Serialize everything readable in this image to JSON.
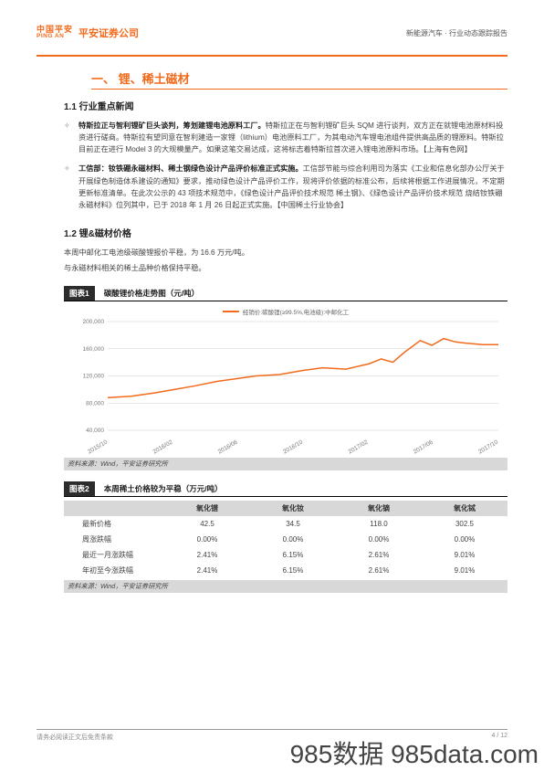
{
  "header": {
    "logo_cn": "中国平安",
    "logo_en": "PING AN",
    "logo_right": "平安证券公司",
    "right_text": "新能源汽车 · 行业动态跟踪报告"
  },
  "section1": {
    "title": "一、 锂、稀土磁材",
    "sub1": "1.1 行业重点新闻",
    "bullets": [
      {
        "lead": "特斯拉正与智利锂矿巨头谈判，筹划建锂电池原料工厂。",
        "body": "特斯拉正在与智利锂矿巨头 SQM 进行谈判，双方正在就锂电池原材料投资进行磋商。特斯拉有望同意在智利建造一家锂（lithium）电池原料工厂，为其电动汽车锂电池组件提供高品质的锂原料。特斯拉目前正在进行 Model 3 的大规模量产。如果这笔交易达成，这将标志着特斯拉首次进入锂电池原料市场。【上海有色网】"
      },
      {
        "lead": "工信部：钕铁硼永磁材料、稀土钢绿色设计产品评价标准正式实施。",
        "body": "工信部节能与综合利用司为落实《工业和信息化部办公厅关于开展绿色制造体系建设的通知》要求，推动绿色设计产品评价工作，现将评价依据的标准公布，后续将根据工作进展情况，不定期更新标准清单。在此次公示的 43 项技术规范中，《绿色设计产品评价技术规范 稀土钢》、《绿色设计产品评价技术规范 烧结钕铁硼永磁材料》位列其中，已于 2018 年 1 月 26 日起正式实施。【中国稀土行业协会】"
      }
    ],
    "sub2": "1.2 锂&磁材价格",
    "para1": "本周中邮化工电池级碳酸锂报价平稳，为 16.6 万元/吨。",
    "para2": "与永磁材料相关的稀土品种价格保持平稳。"
  },
  "chart1": {
    "label": "图表1",
    "caption": "碳酸锂价格走势图（元/吨）",
    "legend": "经销价:碳酸锂(≥99.5%,电池级):中邮化工",
    "source": "资料来源：Wind，平安证券研究所",
    "y_ticks": [
      "40,000",
      "80,000",
      "120,000",
      "160,000",
      "200,000"
    ],
    "y_values": [
      40000,
      80000,
      120000,
      160000,
      200000
    ],
    "x_ticks": [
      "2015/10",
      "2016/02",
      "2016/06",
      "2016/10",
      "2017/02",
      "2017/06",
      "2017/10"
    ],
    "background_color": "#ffffff",
    "line_color": "#f26a1b",
    "grid_color": "#cccccc",
    "series": [
      {
        "x": 0.0,
        "y": 88000
      },
      {
        "x": 0.06,
        "y": 90000
      },
      {
        "x": 0.12,
        "y": 95000
      },
      {
        "x": 0.17,
        "y": 100000
      },
      {
        "x": 0.22,
        "y": 105000
      },
      {
        "x": 0.28,
        "y": 112000
      },
      {
        "x": 0.33,
        "y": 116000
      },
      {
        "x": 0.38,
        "y": 120000
      },
      {
        "x": 0.44,
        "y": 122000
      },
      {
        "x": 0.5,
        "y": 128000
      },
      {
        "x": 0.55,
        "y": 132000
      },
      {
        "x": 0.61,
        "y": 130000
      },
      {
        "x": 0.67,
        "y": 138000
      },
      {
        "x": 0.7,
        "y": 145000
      },
      {
        "x": 0.73,
        "y": 140000
      },
      {
        "x": 0.76,
        "y": 155000
      },
      {
        "x": 0.8,
        "y": 172000
      },
      {
        "x": 0.83,
        "y": 165000
      },
      {
        "x": 0.86,
        "y": 175000
      },
      {
        "x": 0.89,
        "y": 170000
      },
      {
        "x": 0.92,
        "y": 168000
      },
      {
        "x": 0.96,
        "y": 166000
      },
      {
        "x": 1.0,
        "y": 166000
      }
    ]
  },
  "chart2": {
    "label": "图表2",
    "caption": "本周稀土价格较为平稳（万元/吨）",
    "source": "资料来源：Wind，平安证券研究所",
    "columns": [
      "",
      "氧化镨",
      "氧化钕",
      "氧化镝",
      "氧化铽"
    ],
    "rows": [
      [
        "最新价格",
        "42.5",
        "34.5",
        "118.0",
        "302.5"
      ],
      [
        "周涨跌幅",
        "0.00%",
        "0.00%",
        "0.00%",
        "0.00%"
      ],
      [
        "最近一月涨跌幅",
        "2.41%",
        "6.15%",
        "2.61%",
        "9.01%"
      ],
      [
        "年初至今涨跌幅",
        "2.41%",
        "6.15%",
        "2.61%",
        "9.01%"
      ]
    ]
  },
  "footer": {
    "left": "请务必阅读正文后免责条款",
    "right": "4 / 12"
  },
  "watermark": "985数据 985data.com"
}
